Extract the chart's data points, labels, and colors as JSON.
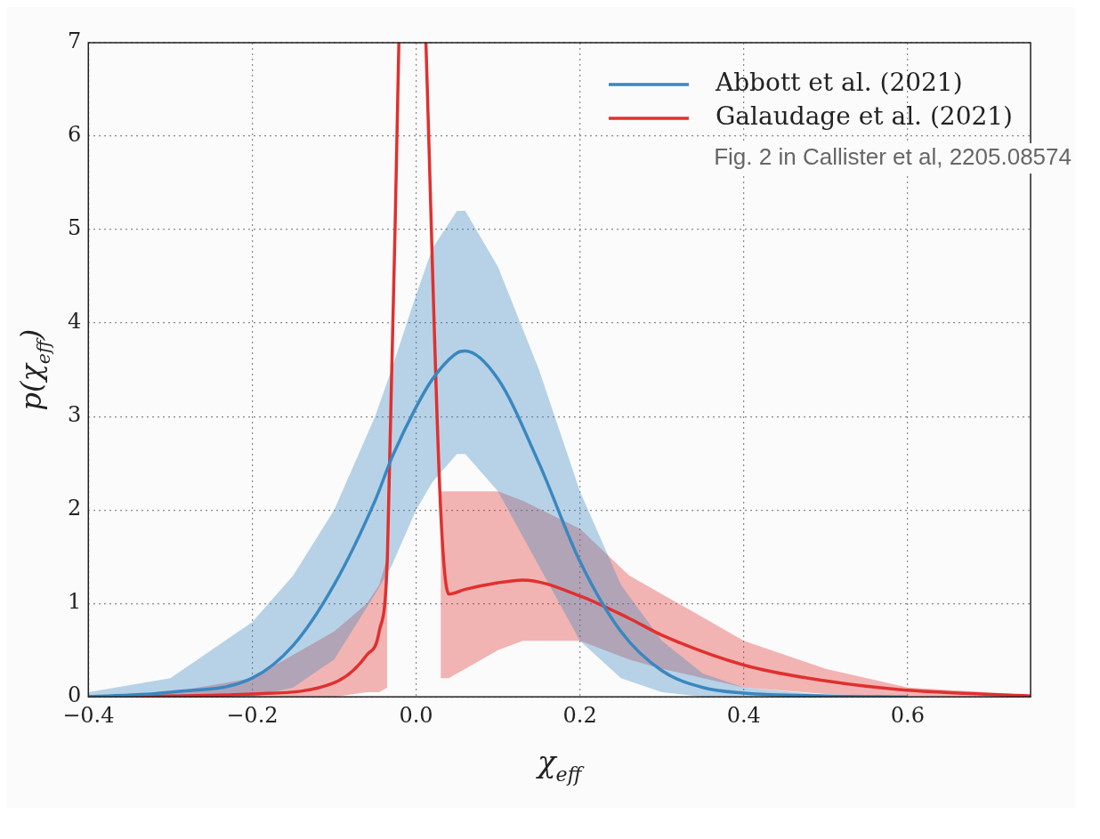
{
  "chart_data": {
    "type": "line",
    "xlabel": "χ$_{eff}$",
    "ylabel": "p(χ$_{eff}$)",
    "xlim": [
      -0.4,
      0.75
    ],
    "ylim": [
      0,
      7
    ],
    "xticks": [
      {
        "value": -0.4,
        "label": "−0.4"
      },
      {
        "value": -0.2,
        "label": "−0.2"
      },
      {
        "value": 0,
        "label": "0.0"
      },
      {
        "value": 0.2,
        "label": "0.2"
      },
      {
        "value": 0.4,
        "label": "0.4"
      },
      {
        "value": 0.6,
        "label": "0.6"
      }
    ],
    "yticks": [
      0,
      1,
      2,
      3,
      4,
      5,
      6,
      7
    ],
    "grid": true,
    "legend": "top right",
    "annotations": [
      "Fig. 2 in Callister et al, 2205.08574"
    ],
    "series": [
      {
        "name": "Abbott et al. (2021)",
        "color": "#3a87c0",
        "x": [
          -0.4,
          -0.3,
          -0.2,
          -0.15,
          -0.1,
          -0.05,
          -0.03,
          0,
          0.02,
          0.05,
          0.06,
          0.1,
          0.15,
          0.2,
          0.25,
          0.3,
          0.35,
          0.4,
          0.5,
          0.6,
          0.75
        ],
        "values": [
          0,
          0.05,
          0.2,
          0.55,
          1.2,
          2.1,
          2.55,
          3.1,
          3.4,
          3.68,
          3.7,
          3.4,
          2.5,
          1.45,
          0.7,
          0.28,
          0.1,
          0.04,
          0.01,
          0,
          null
        ],
        "upper": [
          0.05,
          0.2,
          0.8,
          1.3,
          2.0,
          3.0,
          3.5,
          4.3,
          4.8,
          5.2,
          5.2,
          4.6,
          3.5,
          2.2,
          1.2,
          0.6,
          0.25,
          0.1,
          0.02,
          0,
          0
        ],
        "lower": [
          0,
          0,
          0,
          0.1,
          0.4,
          1.1,
          1.4,
          2.0,
          2.3,
          2.6,
          2.6,
          2.2,
          1.4,
          0.6,
          0.2,
          0.05,
          0,
          0,
          0,
          0,
          0
        ]
      },
      {
        "name": "Galaudage et al. (2021)",
        "color": "#e0302f",
        "x": [
          -0.4,
          -0.3,
          -0.2,
          -0.1,
          -0.06,
          -0.045,
          -0.035,
          -0.021,
          0,
          0.012,
          0.03,
          0.04,
          0.06,
          0.1,
          0.13,
          0.2,
          0.26,
          0.3,
          0.4,
          0.5,
          0.6,
          0.75
        ],
        "values": [
          0,
          0.01,
          0.03,
          0.15,
          0.45,
          0.7,
          1.5,
          7,
          null,
          7,
          2,
          1.1,
          1.15,
          1.22,
          1.25,
          1.08,
          0.84,
          0.66,
          0.34,
          0.17,
          0.07,
          0.01
        ],
        "upper": [
          0,
          0.05,
          0.2,
          0.7,
          1.0,
          1.2,
          1.5,
          null,
          null,
          null,
          2.2,
          2.2,
          2.2,
          2.2,
          2.1,
          1.8,
          1.3,
          1.1,
          0.6,
          0.3,
          0.1,
          0.02
        ],
        "lower": [
          0,
          0,
          0,
          0,
          0.05,
          0.05,
          0.1,
          null,
          null,
          null,
          0.2,
          0.2,
          0.3,
          0.5,
          0.6,
          0.6,
          0.4,
          0.3,
          0.1,
          0.03,
          0,
          0
        ]
      }
    ]
  }
}
